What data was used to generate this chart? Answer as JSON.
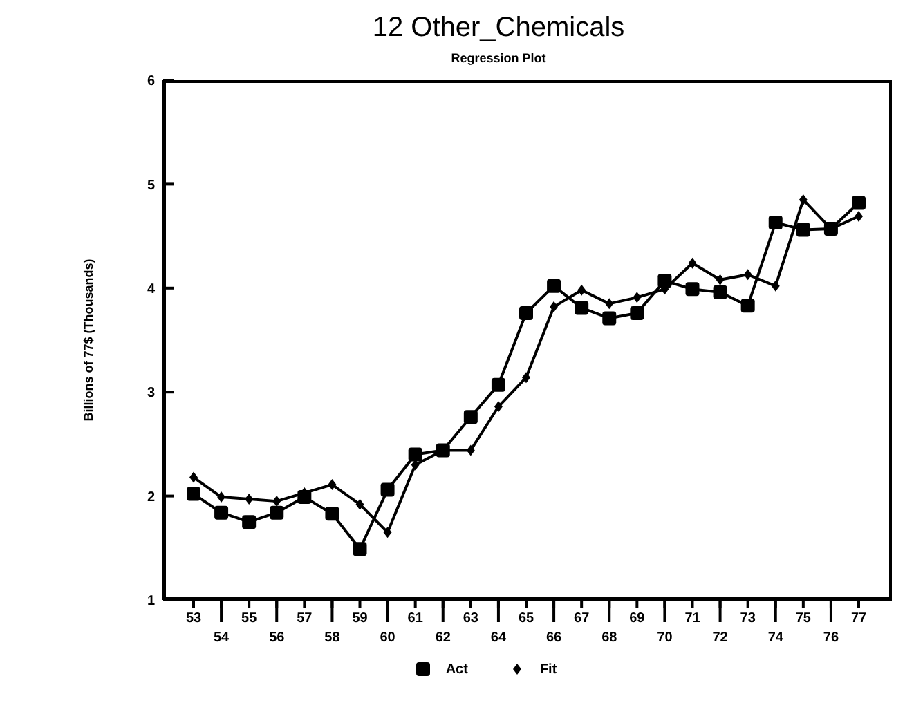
{
  "chart_data": {
    "type": "line",
    "title": "12 Other_Chemicals",
    "subtitle": "Regression Plot",
    "ylabel": "Billions of 77$ (Thousands)",
    "categories": [
      "53",
      "54",
      "55",
      "56",
      "57",
      "58",
      "59",
      "60",
      "61",
      "62",
      "63",
      "64",
      "65",
      "66",
      "67",
      "68",
      "69",
      "70",
      "71",
      "72",
      "73",
      "74",
      "75",
      "76",
      "77"
    ],
    "series": [
      {
        "name": "Act",
        "color": "#000000",
        "marker": "square",
        "values": [
          2.02,
          1.84,
          1.75,
          1.84,
          1.99,
          1.83,
          1.49,
          2.06,
          2.4,
          2.44,
          2.76,
          3.07,
          3.76,
          4.02,
          3.81,
          3.71,
          3.76,
          4.07,
          3.99,
          3.96,
          3.83,
          4.63,
          4.56,
          4.57,
          4.82
        ]
      },
      {
        "name": "Fit",
        "color": "#000000",
        "marker": "diamond",
        "values": [
          2.18,
          1.99,
          1.97,
          1.95,
          2.03,
          2.11,
          1.92,
          1.65,
          2.3,
          2.44,
          2.44,
          2.86,
          3.14,
          3.82,
          3.98,
          3.85,
          3.91,
          3.99,
          4.24,
          4.08,
          4.13,
          4.02,
          4.85,
          4.57,
          4.69
        ]
      }
    ],
    "ylim": [
      1,
      6
    ],
    "yticks": [
      1,
      2,
      3,
      4,
      5,
      6
    ],
    "grid": false,
    "legend": "bottom",
    "line_style": "solid"
  }
}
